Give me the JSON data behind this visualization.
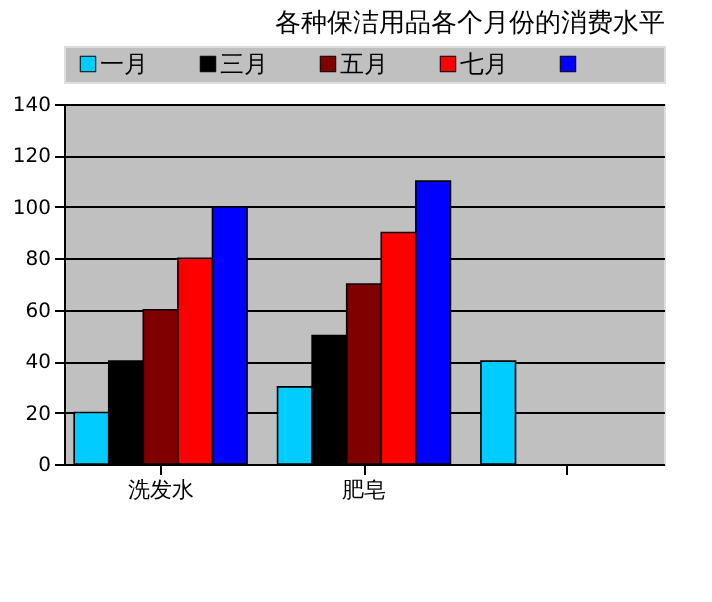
{
  "chart_data": {
    "type": "bar",
    "title": "各种保洁用品各个月份的消费水平",
    "categories": [
      "洗发水",
      "肥皂",
      null
    ],
    "series": [
      {
        "name": "一月",
        "color": "#00ccff",
        "values": [
          20,
          30,
          40
        ]
      },
      {
        "name": "三月",
        "color": "#000000",
        "values": [
          40,
          50,
          null
        ]
      },
      {
        "name": "五月",
        "color": "#800000",
        "values": [
          60,
          70,
          null
        ]
      },
      {
        "name": "七月",
        "color": "#ff0000",
        "values": [
          80,
          90,
          null
        ]
      },
      {
        "color": "#0000ff",
        "values": [
          100,
          110,
          null
        ]
      }
    ],
    "ylim": [
      0,
      140
    ],
    "yticks": [
      0,
      20,
      40,
      60,
      80,
      100,
      120,
      140
    ],
    "grid": "y",
    "legend": "top"
  }
}
